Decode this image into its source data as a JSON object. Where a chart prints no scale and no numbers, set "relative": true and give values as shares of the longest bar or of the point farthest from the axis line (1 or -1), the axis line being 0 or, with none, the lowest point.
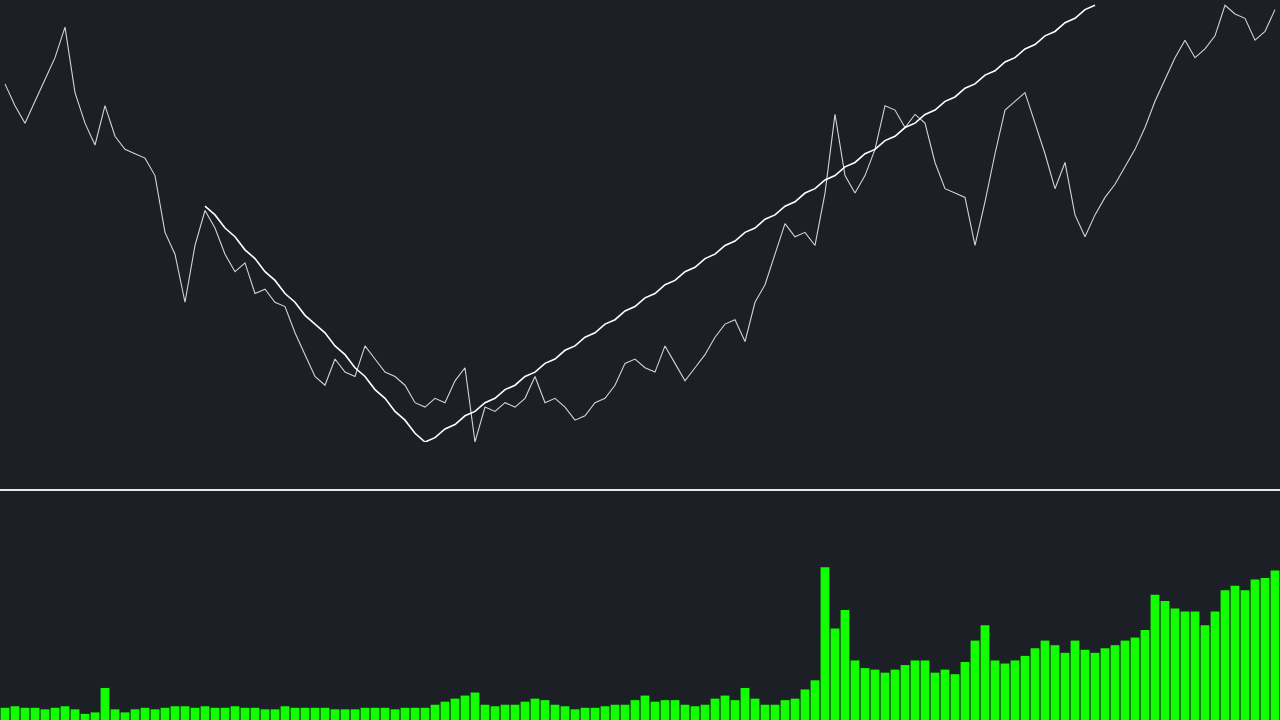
{
  "chart_data": [
    {
      "type": "line",
      "relative": true,
      "legend": false,
      "categories": [
        null,
        null,
        null,
        null,
        null,
        null,
        null,
        null,
        null,
        null,
        null,
        null,
        null,
        null,
        null,
        null,
        null,
        null,
        null,
        null,
        null,
        null,
        null,
        null,
        null,
        null,
        null,
        null,
        null,
        null,
        null,
        null,
        null,
        null,
        null,
        null,
        null,
        null,
        null,
        null,
        null,
        null,
        null,
        null,
        null,
        null,
        null,
        null,
        null,
        null,
        null,
        null,
        null,
        null,
        null,
        null,
        null,
        null,
        null,
        null,
        null,
        null,
        null,
        null,
        null,
        null,
        null,
        null,
        null,
        null,
        null,
        null,
        null,
        null,
        null,
        null,
        null,
        null,
        null,
        null,
        null,
        null,
        null,
        null,
        null,
        null,
        null,
        null,
        null,
        null,
        null,
        null,
        null,
        null,
        null,
        null,
        null,
        null,
        null,
        null,
        null,
        null,
        null,
        null,
        null,
        null,
        null,
        null,
        null,
        null,
        null,
        null,
        null,
        null,
        null,
        null,
        null,
        null,
        null,
        null,
        null,
        null,
        null,
        null,
        null,
        null,
        null,
        null
      ],
      "series": [
        {
          "type": "line",
          "color": "#d4d4d4",
          "values": [
            0.82,
            0.77,
            0.73,
            0.78,
            0.83,
            0.88,
            0.95,
            0.8,
            0.73,
            0.68,
            0.77,
            0.7,
            0.67,
            0.66,
            0.65,
            0.61,
            0.48,
            0.43,
            0.32,
            0.45,
            0.53,
            0.49,
            0.43,
            0.39,
            0.41,
            0.34,
            0.35,
            0.32,
            0.31,
            0.25,
            0.2,
            0.15,
            0.13,
            0.19,
            0.16,
            0.15,
            0.22,
            0.19,
            0.16,
            0.15,
            0.13,
            0.09,
            0.08,
            0.1,
            0.09,
            0.14,
            0.17,
            0.0,
            0.08,
            0.07,
            0.09,
            0.08,
            0.1,
            0.15,
            0.09,
            0.1,
            0.08,
            0.05,
            0.06,
            0.09,
            0.1,
            0.13,
            0.18,
            0.19,
            0.17,
            0.16,
            0.22,
            0.18,
            0.14,
            0.17,
            0.2,
            0.24,
            0.27,
            0.28,
            0.23,
            0.32,
            0.36,
            0.43,
            0.5,
            0.47,
            0.48,
            0.45,
            0.57,
            0.75,
            0.61,
            0.57,
            0.61,
            0.67,
            0.77,
            0.76,
            0.72,
            0.75,
            0.73,
            0.64,
            0.58,
            0.57,
            0.56,
            0.45,
            0.55,
            0.66,
            0.76,
            0.78,
            0.8,
            0.73,
            0.66,
            0.58,
            0.64,
            0.52,
            0.47,
            0.52,
            0.56,
            0.59,
            0.63,
            0.67,
            0.72,
            0.78,
            0.83,
            0.88,
            0.92,
            0.88,
            0.9,
            0.93,
            1.0,
            0.98,
            0.97,
            0.92,
            0.94,
            0.99
          ]
        },
        {
          "type": "line",
          "color": "#ffffff",
          "values": [
            null,
            null,
            null,
            null,
            null,
            null,
            null,
            null,
            null,
            null,
            null,
            null,
            null,
            null,
            null,
            null,
            null,
            null,
            null,
            null,
            0.54,
            0.52,
            0.49,
            0.47,
            0.44,
            0.42,
            0.39,
            0.37,
            0.34,
            0.32,
            0.29,
            0.27,
            0.25,
            0.22,
            0.2,
            0.17,
            0.15,
            0.12,
            0.1,
            0.07,
            0.05,
            0.02,
            0.0,
            0.01,
            0.03,
            0.04,
            0.06,
            0.07,
            0.09,
            0.1,
            0.12,
            0.13,
            0.15,
            0.16,
            0.18,
            0.19,
            0.21,
            0.22,
            0.24,
            0.25,
            0.27,
            0.28,
            0.3,
            0.31,
            0.33,
            0.34,
            0.36,
            0.37,
            0.39,
            0.4,
            0.42,
            0.43,
            0.45,
            0.46,
            0.48,
            0.49,
            0.51,
            0.52,
            0.54,
            0.55,
            0.57,
            0.58,
            0.6,
            0.61,
            0.63,
            0.64,
            0.66,
            0.67,
            0.69,
            0.7,
            0.72,
            0.73,
            0.75,
            0.76,
            0.78,
            0.79,
            0.81,
            0.82,
            0.84,
            0.85,
            0.87,
            0.88,
            0.9,
            0.91,
            0.93,
            0.94,
            0.96,
            0.97,
            0.99,
            1.0,
            null,
            null,
            null,
            null,
            null,
            null,
            null,
            null,
            null,
            null,
            null,
            null,
            null,
            null,
            null,
            null,
            null,
            null
          ]
        }
      ]
    },
    {
      "type": "bar",
      "relative": true,
      "legend": false,
      "color": "#11ff00",
      "categories": [
        null,
        null,
        null,
        null,
        null,
        null,
        null,
        null,
        null,
        null,
        null,
        null,
        null,
        null,
        null,
        null,
        null,
        null,
        null,
        null,
        null,
        null,
        null,
        null,
        null,
        null,
        null,
        null,
        null,
        null,
        null,
        null,
        null,
        null,
        null,
        null,
        null,
        null,
        null,
        null,
        null,
        null,
        null,
        null,
        null,
        null,
        null,
        null,
        null,
        null,
        null,
        null,
        null,
        null,
        null,
        null,
        null,
        null,
        null,
        null,
        null,
        null,
        null,
        null,
        null,
        null,
        null,
        null,
        null,
        null,
        null,
        null,
        null,
        null,
        null,
        null,
        null,
        null,
        null,
        null,
        null,
        null,
        null,
        null,
        null,
        null,
        null,
        null,
        null,
        null,
        null,
        null,
        null,
        null,
        null,
        null,
        null,
        null,
        null,
        null,
        null,
        null,
        null,
        null,
        null,
        null,
        null,
        null,
        null,
        null,
        null,
        null,
        null,
        null,
        null,
        null,
        null,
        null,
        null,
        null,
        null,
        null,
        null,
        null,
        null,
        null,
        null,
        null
      ],
      "values": [
        0.08,
        0.09,
        0.08,
        0.08,
        0.07,
        0.08,
        0.09,
        0.07,
        0.04,
        0.05,
        0.21,
        0.07,
        0.05,
        0.07,
        0.08,
        0.07,
        0.08,
        0.09,
        0.09,
        0.08,
        0.09,
        0.08,
        0.08,
        0.09,
        0.08,
        0.08,
        0.07,
        0.07,
        0.09,
        0.08,
        0.08,
        0.08,
        0.08,
        0.07,
        0.07,
        0.07,
        0.08,
        0.08,
        0.08,
        0.07,
        0.08,
        0.08,
        0.08,
        0.1,
        0.12,
        0.14,
        0.16,
        0.18,
        0.1,
        0.09,
        0.1,
        0.1,
        0.12,
        0.14,
        0.13,
        0.1,
        0.09,
        0.07,
        0.08,
        0.08,
        0.09,
        0.1,
        0.1,
        0.13,
        0.16,
        0.12,
        0.13,
        0.13,
        0.1,
        0.09,
        0.1,
        0.14,
        0.16,
        0.13,
        0.21,
        0.14,
        0.1,
        0.1,
        0.13,
        0.14,
        0.2,
        0.26,
        1.0,
        0.6,
        0.72,
        0.39,
        0.34,
        0.33,
        0.31,
        0.33,
        0.36,
        0.39,
        0.39,
        0.31,
        0.33,
        0.3,
        0.38,
        0.52,
        0.62,
        0.39,
        0.37,
        0.39,
        0.42,
        0.47,
        0.52,
        0.49,
        0.44,
        0.52,
        0.46,
        0.44,
        0.47,
        0.49,
        0.52,
        0.54,
        0.59,
        0.82,
        0.78,
        0.73,
        0.71,
        0.71,
        0.62,
        0.71,
        0.85,
        0.88,
        0.85,
        0.92,
        0.93,
        0.98
      ]
    }
  ]
}
